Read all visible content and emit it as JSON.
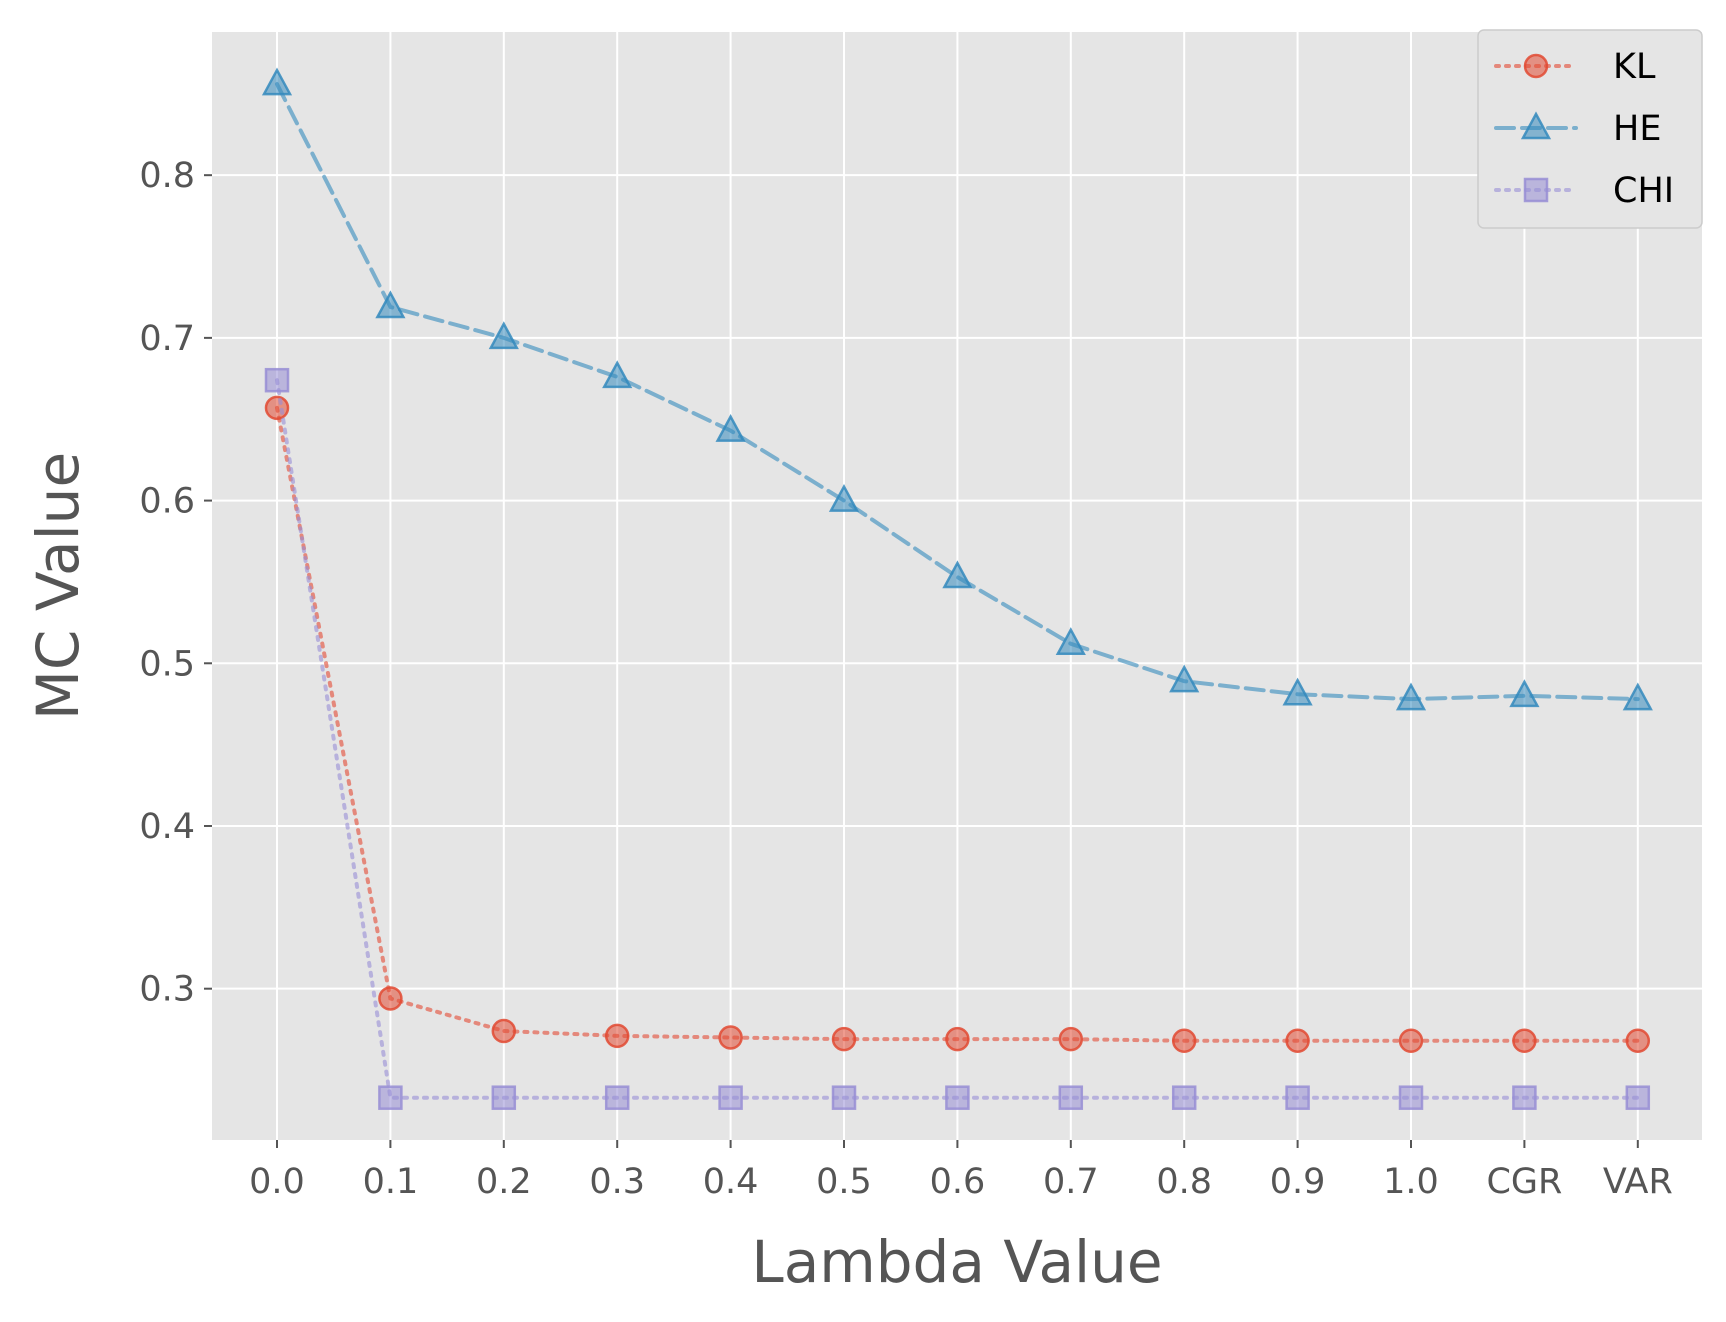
{
  "chart_data": {
    "type": "line",
    "title": "",
    "xlabel": "Lambda Value",
    "ylabel": "MC Value",
    "categories": [
      "0.0",
      "0.1",
      "0.2",
      "0.3",
      "0.4",
      "0.5",
      "0.6",
      "0.7",
      "0.8",
      "0.9",
      "1.0",
      "CGR",
      "VAR"
    ],
    "yticks": [
      "0.3",
      "0.4",
      "0.5",
      "0.6",
      "0.7",
      "0.8"
    ],
    "ylim": [
      0.207,
      0.888
    ],
    "grid": true,
    "legend_position": "top-right",
    "series": [
      {
        "name": "KL",
        "values": [
          0.657,
          0.294,
          0.274,
          0.271,
          0.27,
          0.269,
          0.269,
          0.269,
          0.268,
          0.268,
          0.268,
          0.268,
          0.268
        ],
        "color": "#E24A33",
        "marker": "circle",
        "line_style": "dotted"
      },
      {
        "name": "HE",
        "values": [
          0.856,
          0.719,
          0.7,
          0.676,
          0.643,
          0.6,
          0.553,
          0.512,
          0.489,
          0.481,
          0.478,
          0.48,
          0.478
        ],
        "color": "#348ABD",
        "marker": "triangle",
        "line_style": "dashed"
      },
      {
        "name": "CHI",
        "values": [
          0.674,
          0.233,
          0.233,
          0.233,
          0.233,
          0.233,
          0.233,
          0.233,
          0.233,
          0.233,
          0.233,
          0.233,
          0.233
        ],
        "color": "#988ED5",
        "marker": "square",
        "line_style": "dotted"
      }
    ]
  }
}
